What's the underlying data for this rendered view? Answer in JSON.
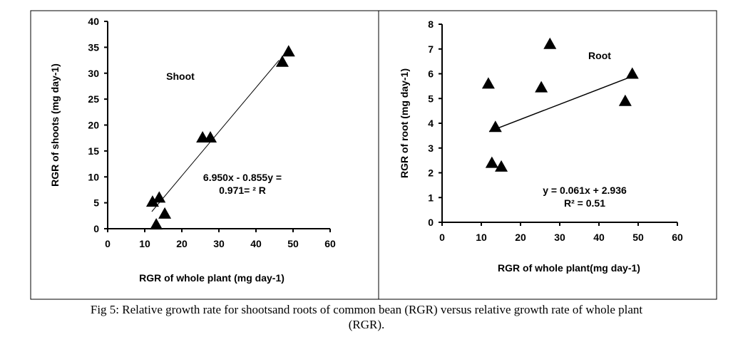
{
  "chart_data": [
    {
      "type": "scatter",
      "title": "Shoot",
      "xlabel": "RGR of whole plant (mg day-1)",
      "ylabel": "RGR of shoots (mg day-1)",
      "xlim": [
        0,
        60
      ],
      "ylim": [
        0,
        40
      ],
      "xticks": [
        "0",
        "10",
        "20",
        "30",
        "40",
        "50",
        "60"
      ],
      "yticks": [
        "0",
        "5",
        "10",
        "15",
        "20",
        "25",
        "30",
        "35",
        "40"
      ],
      "points": [
        [
          48.8,
          34.2
        ],
        [
          47.1,
          32.2
        ],
        [
          25.6,
          17.6
        ],
        [
          27.7,
          17.6
        ],
        [
          12.1,
          5.2
        ],
        [
          13.9,
          6.0
        ],
        [
          15.4,
          2.9
        ],
        [
          13.1,
          0.8
        ]
      ],
      "trendline": {
        "x": [
          11.9,
          46.2
        ],
        "y": [
          3.3,
          32.5
        ]
      },
      "equation_line1": "6.950x - 0.855y =",
      "equation_line2": "0.971= ² R",
      "marker": "triangle"
    },
    {
      "type": "scatter",
      "title": "Root",
      "xlabel": "RGR of whole plant(mg day-1)",
      "ylabel": "RGR of root (mg day-1)",
      "xlim": [
        0,
        60
      ],
      "ylim": [
        0,
        8
      ],
      "xticks": [
        "0",
        "10",
        "20",
        "30",
        "40",
        "50",
        "60"
      ],
      "yticks": [
        "0",
        "1",
        "2",
        "3",
        "4",
        "5",
        "6",
        "7",
        "8"
      ],
      "points": [
        [
          11.8,
          5.6
        ],
        [
          27.5,
          7.2
        ],
        [
          25.3,
          5.45
        ],
        [
          48.5,
          6.0
        ],
        [
          46.7,
          4.9
        ],
        [
          13.6,
          3.85
        ],
        [
          12.7,
          2.4
        ],
        [
          15.1,
          2.25
        ]
      ],
      "trendline": {
        "slope": 0.061,
        "intercept": 2.936,
        "x": [
          12,
          48
        ]
      },
      "equation_line1": "y = 0.061x + 2.936",
      "equation_line2": "R² = 0.51",
      "marker": "triangle"
    }
  ],
  "caption_line1": "Fig 5: Relative growth rate for shootsand roots of common bean (RGR) versus relative growth rate of whole plant",
  "caption_line2": "(RGR)."
}
